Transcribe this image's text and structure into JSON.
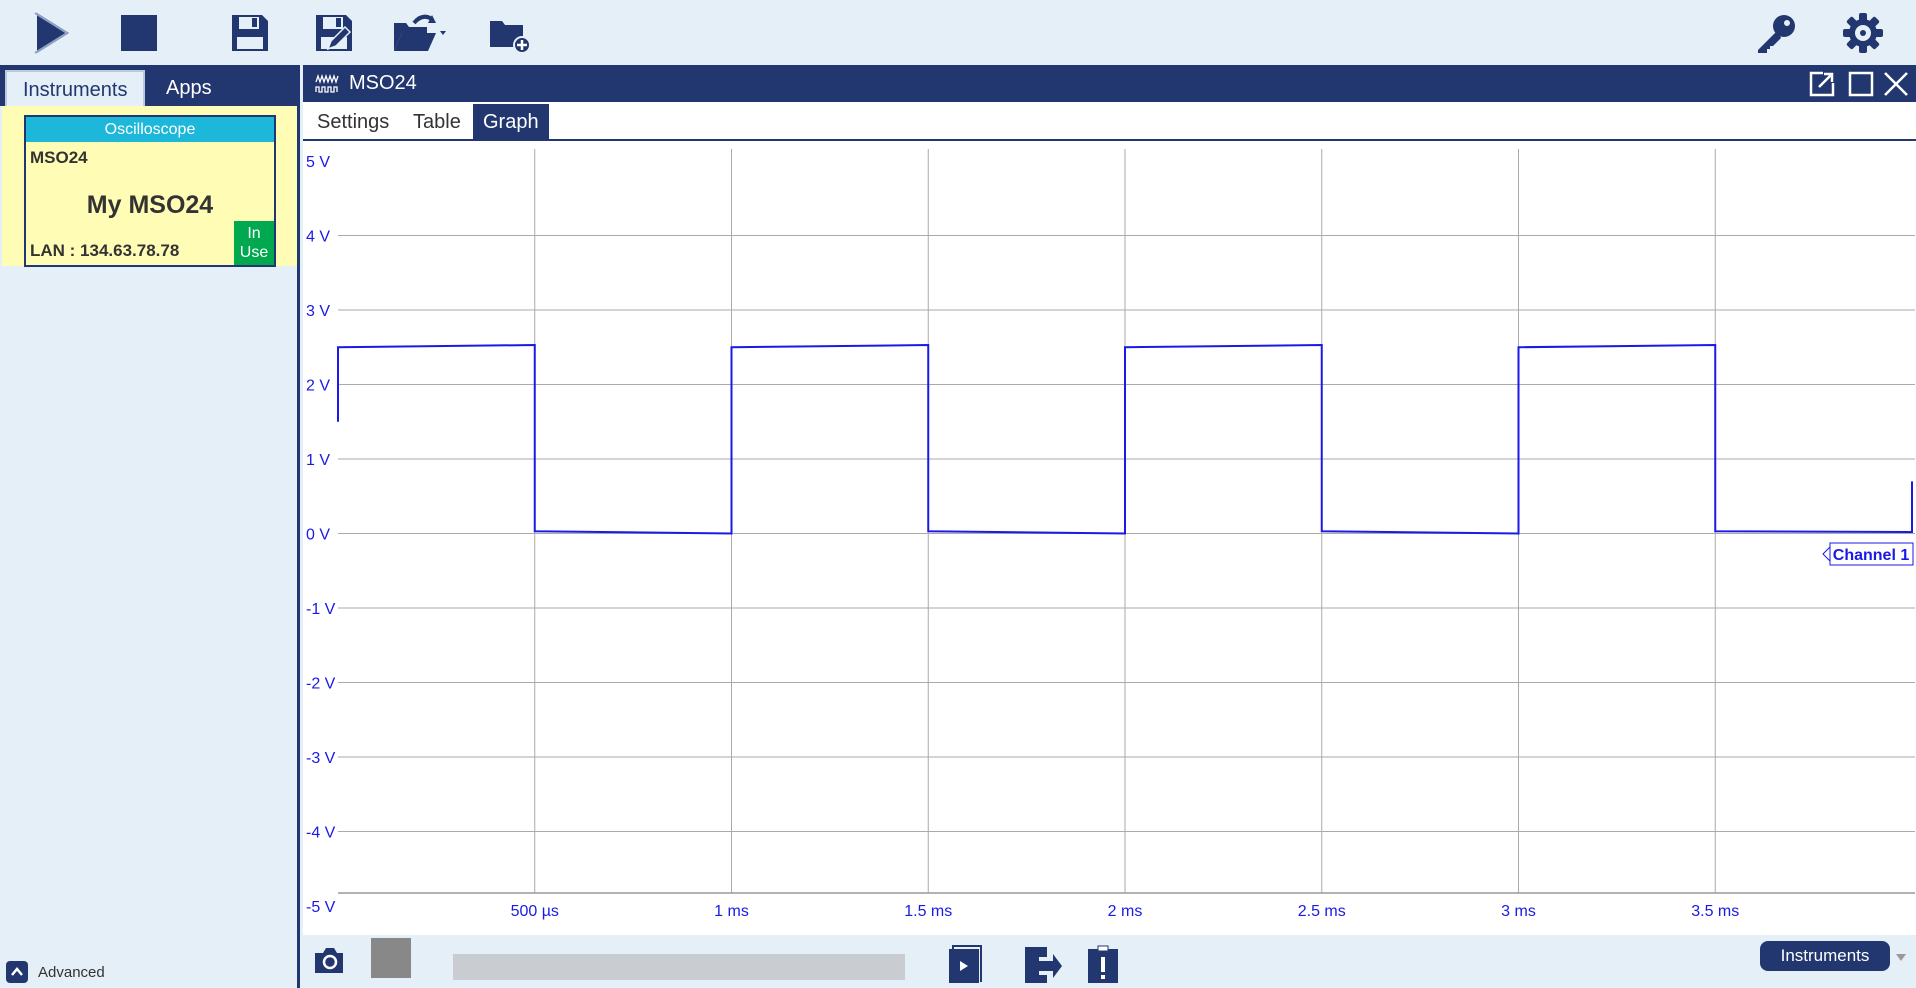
{
  "toolbar": {
    "left_icons": [
      "play-icon",
      "stop-icon",
      "save-icon",
      "save-as-icon",
      "open-folder-icon",
      "new-folder-icon"
    ],
    "right_icons": [
      "key-icon",
      "gear-icon"
    ]
  },
  "left_panel": {
    "tabs": [
      {
        "label": "Instruments",
        "active": true
      },
      {
        "label": "Apps",
        "active": false
      }
    ],
    "card": {
      "type": "Oscilloscope",
      "model": "MSO24",
      "name": "My MSO24",
      "address": "LAN : 134.63.78.78",
      "status": "In Use"
    },
    "advanced_label": "Advanced"
  },
  "window": {
    "title": "MSO24",
    "tabs": [
      {
        "label": "Settings",
        "active": false
      },
      {
        "label": "Table",
        "active": false
      },
      {
        "label": "Graph",
        "active": true
      }
    ],
    "instruments_button": "Instruments"
  },
  "colors": {
    "navy": "#22376f",
    "trace": "#1a1ae6",
    "card_bg": "#fffdb5",
    "card_head": "#1db7d9",
    "in_use": "#00a94f"
  },
  "chart_data": {
    "type": "line",
    "xlabel": "",
    "ylabel": "",
    "xlim_ms": [
      0,
      4
    ],
    "ylim_V": [
      -5,
      5
    ],
    "grid": true,
    "y_ticks": [
      "5 V",
      "4 V",
      "3 V",
      "2 V",
      "1 V",
      "0 V",
      "-1 V",
      "-2 V",
      "-3 V",
      "-4 V",
      "-5 V"
    ],
    "y_tick_values": [
      5,
      4,
      3,
      2,
      1,
      0,
      -1,
      -2,
      -3,
      -4,
      -5
    ],
    "x_ticks": [
      "500 µs",
      "1 ms",
      "1.5 ms",
      "2 ms",
      "2.5 ms",
      "3 ms",
      "3.5 ms"
    ],
    "x_tick_values": [
      0.5,
      1,
      1.5,
      2,
      2.5,
      3,
      3.5
    ],
    "series": [
      {
        "name": "Channel 1",
        "color": "#1a1ae6",
        "x": [
          0,
          0,
          0.5,
          0.5,
          1.0,
          1.0,
          1.5,
          1.5,
          2.0,
          2.0,
          2.5,
          2.5,
          3.0,
          3.0,
          3.5,
          3.5,
          4.0,
          4.0
        ],
        "y": [
          1.5,
          2.5,
          2.53,
          0.03,
          0.0,
          2.5,
          2.53,
          0.03,
          0.0,
          2.5,
          2.53,
          0.03,
          0.0,
          2.5,
          2.53,
          0.03,
          0.02,
          0.7
        ]
      }
    ]
  }
}
